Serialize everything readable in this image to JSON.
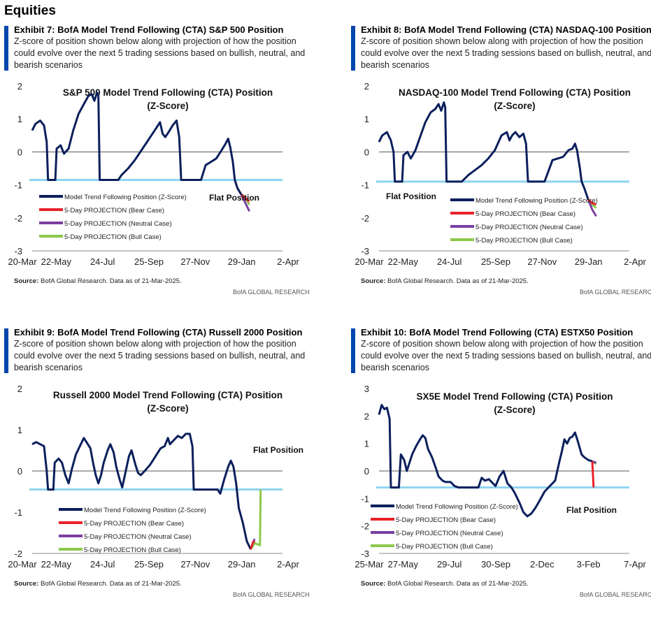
{
  "section_title": "Equities",
  "source_label": "Source:",
  "source_text": "BofA Global Research.  Data as of 21-Mar-2025.",
  "brand": "BofA GLOBAL RESEARCH",
  "colors": {
    "position": "#0b1f5c",
    "flat": "#8fd3f0",
    "bear": "#e8222a",
    "neutral": "#7b3fa0",
    "bull": "#8cc84b",
    "header_bar": "#0046ad"
  },
  "charts": [
    {
      "exhibit": "Exhibit 7: BofA Model Trend Following (CTA) S&P 500 Position",
      "subtitle": "Z-score of position shown below along with projection of how the position could evolve over the next 5 trading sessions based on bullish, neutral, and bearish scenarios",
      "chart_data": {
        "type": "line",
        "title": "S&P 500 Model Trend Following (CTA) Position",
        "title2": "(Z-Score)",
        "xlabels": [
          "20-Mar",
          "22-May",
          "24-Jul",
          "25-Sep",
          "27-Nov",
          "29-Jan",
          "2-Apr"
        ],
        "xrange": [
          0,
          378
        ],
        "ylim": [
          -3,
          2
        ],
        "yticks": [
          2,
          1,
          0,
          -1,
          -2,
          -3
        ],
        "flat_value": -0.85,
        "flat_label": "Flat Position",
        "legend": [
          "Model Trend Following Position (Z-Score)",
          "5-Day PROJECTION (Bear Case)",
          "5-Day PROJECTION (Neutral Case)",
          "5-Day PROJECTION (Bull Case)"
        ],
        "series": [
          [
            0,
            0.65
          ],
          [
            5,
            0.85
          ],
          [
            12,
            0.95
          ],
          [
            18,
            0.8
          ],
          [
            22,
            0.3
          ],
          [
            24,
            -0.85
          ],
          [
            35,
            -0.85
          ],
          [
            37,
            0.1
          ],
          [
            43,
            0.2
          ],
          [
            48,
            -0.05
          ],
          [
            55,
            0.1
          ],
          [
            62,
            0.65
          ],
          [
            70,
            1.15
          ],
          [
            78,
            1.45
          ],
          [
            85,
            1.7
          ],
          [
            90,
            1.75
          ],
          [
            94,
            1.55
          ],
          [
            98,
            1.8
          ],
          [
            100,
            1.7
          ],
          [
            102,
            -0.85
          ],
          [
            130,
            -0.85
          ],
          [
            135,
            -0.7
          ],
          [
            145,
            -0.5
          ],
          [
            155,
            -0.25
          ],
          [
            165,
            0.05
          ],
          [
            175,
            0.35
          ],
          [
            185,
            0.65
          ],
          [
            193,
            0.9
          ],
          [
            197,
            0.55
          ],
          [
            201,
            0.45
          ],
          [
            206,
            0.6
          ],
          [
            212,
            0.8
          ],
          [
            218,
            0.95
          ],
          [
            222,
            0.45
          ],
          [
            225,
            -0.85
          ],
          [
            255,
            -0.85
          ],
          [
            262,
            -0.4
          ],
          [
            270,
            -0.3
          ],
          [
            278,
            -0.2
          ],
          [
            286,
            0.05
          ],
          [
            292,
            0.25
          ],
          [
            296,
            0.4
          ],
          [
            299,
            0.15
          ],
          [
            303,
            -0.3
          ],
          [
            306,
            -0.85
          ],
          [
            310,
            -1.1
          ],
          [
            316,
            -1.3
          ]
        ],
        "bear": [
          [
            316,
            -1.3
          ],
          [
            322,
            -1.4
          ],
          [
            328,
            -1.5
          ]
        ],
        "neutral": [
          [
            316,
            -1.3
          ],
          [
            322,
            -1.55
          ],
          [
            328,
            -1.8
          ]
        ],
        "bull": [
          [
            316,
            -1.3
          ],
          [
            322,
            -1.4
          ],
          [
            328,
            -1.6
          ]
        ]
      }
    },
    {
      "exhibit": "Exhibit 8: BofA Model Trend Following (CTA) NASDAQ-100 Position",
      "subtitle": "Z-score of position shown below along with projection of how the position could evolve over the next 5 trading sessions based on bullish, neutral, and bearish scenarios",
      "chart_data": {
        "type": "line",
        "title": "NASDAQ-100 Model Trend Following (CTA) Position",
        "title2": "(Z-Score)",
        "xlabels": [
          "20-Mar",
          "22-May",
          "24-Jul",
          "25-Sep",
          "27-Nov",
          "29-Jan",
          "2-Apr"
        ],
        "xrange": [
          0,
          378
        ],
        "ylim": [
          -3,
          2
        ],
        "yticks": [
          2,
          1,
          0,
          -1,
          -2,
          -3
        ],
        "flat_value": -0.9,
        "flat_label": "Flat Position",
        "legend": [
          "Model Trend Following Position (Z-Score)",
          "5-Day PROJECTION (Bear Case)",
          "5-Day PROJECTION (Neutral Case)",
          "5-Day PROJECTION (Bull Case)"
        ],
        "series": [
          [
            0,
            0.3
          ],
          [
            5,
            0.5
          ],
          [
            12,
            0.6
          ],
          [
            18,
            0.35
          ],
          [
            22,
            0.0
          ],
          [
            24,
            -0.9
          ],
          [
            35,
            -0.9
          ],
          [
            37,
            -0.1
          ],
          [
            43,
            0.0
          ],
          [
            48,
            -0.2
          ],
          [
            55,
            0.05
          ],
          [
            62,
            0.45
          ],
          [
            70,
            0.9
          ],
          [
            78,
            1.2
          ],
          [
            85,
            1.3
          ],
          [
            90,
            1.45
          ],
          [
            94,
            1.25
          ],
          [
            98,
            1.5
          ],
          [
            100,
            1.35
          ],
          [
            102,
            -0.9
          ],
          [
            125,
            -0.9
          ],
          [
            135,
            -0.7
          ],
          [
            145,
            -0.55
          ],
          [
            155,
            -0.4
          ],
          [
            165,
            -0.2
          ],
          [
            175,
            0.05
          ],
          [
            185,
            0.5
          ],
          [
            193,
            0.6
          ],
          [
            197,
            0.35
          ],
          [
            201,
            0.5
          ],
          [
            206,
            0.6
          ],
          [
            212,
            0.45
          ],
          [
            218,
            0.55
          ],
          [
            222,
            0.25
          ],
          [
            225,
            -0.9
          ],
          [
            250,
            -0.9
          ],
          [
            262,
            -0.25
          ],
          [
            270,
            -0.2
          ],
          [
            278,
            -0.15
          ],
          [
            286,
            0.05
          ],
          [
            292,
            0.1
          ],
          [
            296,
            0.25
          ],
          [
            299,
            0.05
          ],
          [
            303,
            -0.45
          ],
          [
            306,
            -0.9
          ],
          [
            310,
            -1.1
          ],
          [
            316,
            -1.45
          ]
        ],
        "bear": [
          [
            316,
            -1.45
          ],
          [
            322,
            -1.55
          ],
          [
            328,
            -1.6
          ]
        ],
        "neutral": [
          [
            316,
            -1.45
          ],
          [
            322,
            -1.75
          ],
          [
            328,
            -1.95
          ]
        ],
        "bull": [
          [
            316,
            -1.45
          ],
          [
            322,
            -1.6
          ],
          [
            328,
            -1.7
          ]
        ]
      }
    },
    {
      "exhibit": "Exhibit 9: BofA Model Trend Following (CTA) Russell 2000 Position",
      "subtitle": "Z-score of position shown below along with projection of how the position could evolve over the next 5 trading sessions based on bullish, neutral, and bearish scenarios",
      "chart_data": {
        "type": "line",
        "title": "Russell 2000 Model Trend Following (CTA) Position",
        "title2": "(Z-Score)",
        "xlabels": [
          "20-Mar",
          "22-May",
          "24-Jul",
          "25-Sep",
          "27-Nov",
          "29-Jan",
          "2-Apr"
        ],
        "xrange": [
          0,
          378
        ],
        "ylim": [
          -2,
          2
        ],
        "yticks": [
          2,
          1,
          0,
          -1,
          -2
        ],
        "flat_value": -0.45,
        "flat_label": "Flat Position",
        "legend": [
          "Model Trend Following Position (Z-Score)",
          "5-Day PROJECTION (Bear Case)",
          "5-Day PROJECTION (Neutral Case)",
          "5-Day PROJECTION (Bull Case)"
        ],
        "series": [
          [
            0,
            0.65
          ],
          [
            6,
            0.7
          ],
          [
            12,
            0.65
          ],
          [
            18,
            0.6
          ],
          [
            22,
            0.0
          ],
          [
            24,
            -0.45
          ],
          [
            32,
            -0.45
          ],
          [
            34,
            0.2
          ],
          [
            40,
            0.3
          ],
          [
            45,
            0.2
          ],
          [
            50,
            -0.1
          ],
          [
            55,
            -0.3
          ],
          [
            60,
            0.05
          ],
          [
            66,
            0.4
          ],
          [
            72,
            0.6
          ],
          [
            78,
            0.8
          ],
          [
            84,
            0.65
          ],
          [
            88,
            0.55
          ],
          [
            92,
            0.2
          ],
          [
            96,
            -0.1
          ],
          [
            100,
            -0.3
          ],
          [
            104,
            -0.1
          ],
          [
            108,
            0.2
          ],
          [
            114,
            0.5
          ],
          [
            118,
            0.65
          ],
          [
            123,
            0.45
          ],
          [
            127,
            0.1
          ],
          [
            132,
            -0.2
          ],
          [
            136,
            -0.4
          ],
          [
            140,
            -0.1
          ],
          [
            146,
            0.35
          ],
          [
            150,
            0.5
          ],
          [
            156,
            0.15
          ],
          [
            160,
            -0.05
          ],
          [
            164,
            -0.1
          ],
          [
            170,
            0.0
          ],
          [
            178,
            0.15
          ],
          [
            186,
            0.35
          ],
          [
            194,
            0.55
          ],
          [
            200,
            0.6
          ],
          [
            205,
            0.8
          ],
          [
            208,
            0.65
          ],
          [
            214,
            0.75
          ],
          [
            220,
            0.85
          ],
          [
            226,
            0.8
          ],
          [
            232,
            0.9
          ],
          [
            238,
            0.9
          ],
          [
            242,
            0.6
          ],
          [
            244,
            -0.45
          ],
          [
            280,
            -0.45
          ],
          [
            284,
            -0.55
          ],
          [
            290,
            -0.2
          ],
          [
            296,
            0.1
          ],
          [
            300,
            0.25
          ],
          [
            304,
            0.1
          ],
          [
            308,
            -0.3
          ],
          [
            312,
            -0.9
          ],
          [
            318,
            -1.25
          ],
          [
            324,
            -1.7
          ],
          [
            330,
            -1.9
          ]
        ],
        "bear": [
          [
            330,
            -1.9
          ],
          [
            333,
            -1.75
          ],
          [
            336,
            -1.7
          ]
        ],
        "neutral": [
          [
            330,
            -1.9
          ],
          [
            333,
            -1.75
          ],
          [
            336,
            -1.65
          ]
        ],
        "bull": [
          [
            330,
            -1.9
          ],
          [
            336,
            -1.75
          ],
          [
            344,
            -1.8
          ],
          [
            345,
            -0.45
          ]
        ]
      }
    },
    {
      "exhibit": "Exhibit 10: BofA Model Trend Following (CTA) ESTX50 Position",
      "subtitle": "Z-score of position shown below along with projection of how the position could evolve over the next 5 trading sessions based on bullish, neutral, and bearish scenarios",
      "chart_data": {
        "type": "line",
        "title": "SX5E Model Trend Following (CTA) Position",
        "title2": "(Z-Score)",
        "xlabels": [
          "25-Mar",
          "27-May",
          "29-Jul",
          "30-Sep",
          "2-Dec",
          "3-Feb",
          "7-Apr"
        ],
        "xrange": [
          0,
          378
        ],
        "ylim": [
          -3,
          3
        ],
        "yticks": [
          3,
          2,
          1,
          0,
          -1,
          -2,
          -3
        ],
        "flat_value": -0.6,
        "flat_label": "Flat Position",
        "legend": [
          "Model Trend Following Position (Z-Score)",
          "5-Day PROJECTION (Bear Case)",
          "5-Day PROJECTION (Neutral Case)",
          "5-Day PROJECTION (Bull Case)"
        ],
        "series": [
          [
            0,
            2.05
          ],
          [
            4,
            2.4
          ],
          [
            8,
            2.25
          ],
          [
            12,
            2.3
          ],
          [
            16,
            1.9
          ],
          [
            18,
            -0.6
          ],
          [
            30,
            -0.6
          ],
          [
            33,
            0.6
          ],
          [
            38,
            0.4
          ],
          [
            42,
            0.0
          ],
          [
            46,
            0.3
          ],
          [
            50,
            0.6
          ],
          [
            56,
            0.9
          ],
          [
            62,
            1.15
          ],
          [
            66,
            1.3
          ],
          [
            70,
            1.2
          ],
          [
            74,
            0.8
          ],
          [
            80,
            0.5
          ],
          [
            86,
            0.1
          ],
          [
            90,
            -0.2
          ],
          [
            96,
            -0.35
          ],
          [
            100,
            -0.4
          ],
          [
            108,
            -0.4
          ],
          [
            114,
            -0.55
          ],
          [
            120,
            -0.6
          ],
          [
            150,
            -0.6
          ],
          [
            155,
            -0.25
          ],
          [
            160,
            -0.35
          ],
          [
            166,
            -0.3
          ],
          [
            172,
            -0.45
          ],
          [
            176,
            -0.55
          ],
          [
            182,
            -0.2
          ],
          [
            188,
            0.0
          ],
          [
            194,
            -0.45
          ],
          [
            200,
            -0.6
          ],
          [
            205,
            -0.8
          ],
          [
            212,
            -1.15
          ],
          [
            218,
            -1.5
          ],
          [
            224,
            -1.65
          ],
          [
            230,
            -1.55
          ],
          [
            236,
            -1.35
          ],
          [
            242,
            -1.1
          ],
          [
            250,
            -0.75
          ],
          [
            258,
            -0.55
          ],
          [
            266,
            -0.35
          ],
          [
            272,
            0.3
          ],
          [
            276,
            0.7
          ],
          [
            280,
            1.15
          ],
          [
            284,
            1.0
          ],
          [
            288,
            1.2
          ],
          [
            292,
            1.25
          ],
          [
            296,
            1.4
          ],
          [
            300,
            1.1
          ],
          [
            306,
            0.6
          ],
          [
            310,
            0.5
          ],
          [
            316,
            0.4
          ],
          [
            322,
            0.35
          ]
        ],
        "bear": [
          [
            322,
            0.35
          ],
          [
            324,
            -0.6
          ]
        ],
        "neutral": [
          [
            322,
            0.35
          ],
          [
            328,
            0.3
          ]
        ],
        "bull": [
          [
            322,
            0.35
          ],
          [
            328,
            0.25
          ]
        ]
      }
    }
  ]
}
